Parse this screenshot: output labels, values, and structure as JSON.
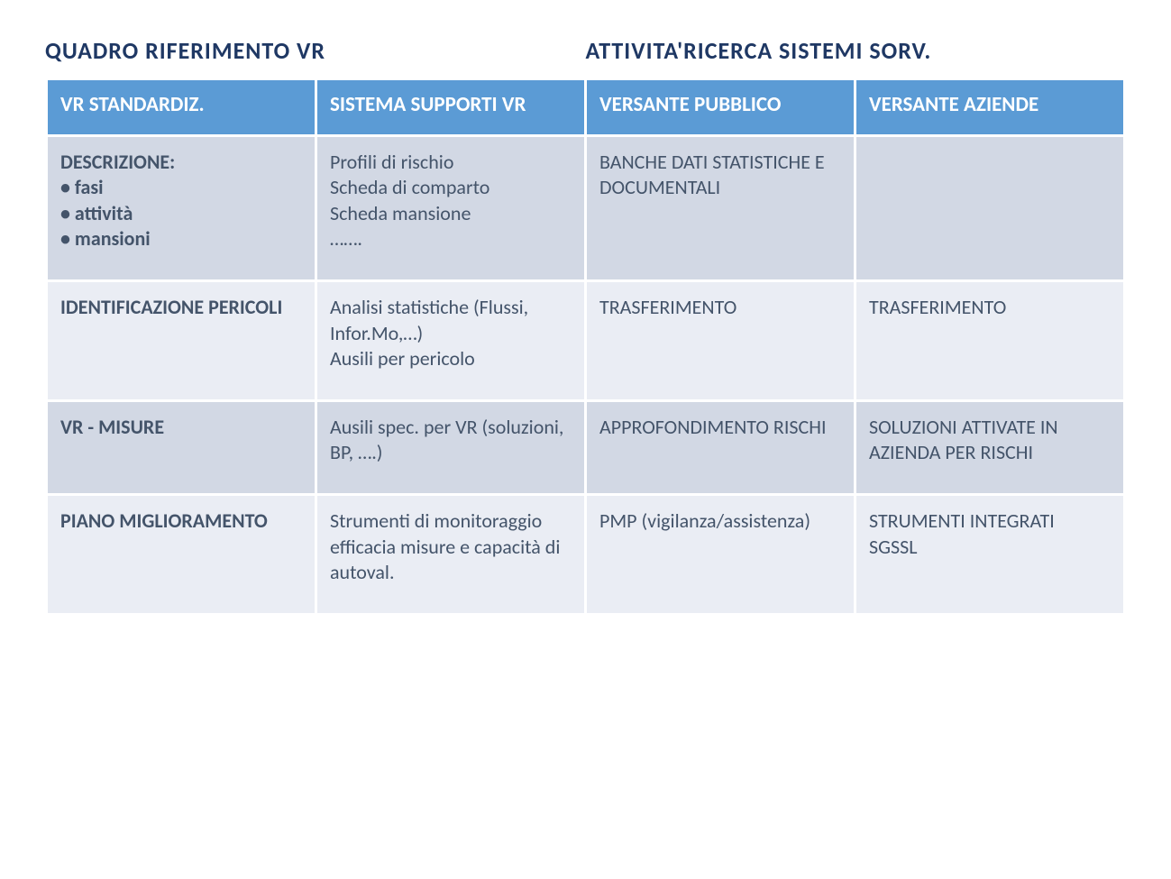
{
  "titles": {
    "left": "QUADRO RIFERIMENTO  VR",
    "right": "ATTIVITA'RICERCA   SISTEMI  SORV."
  },
  "table": {
    "header_bg": "#5b9bd5",
    "header_fg": "#ffffff",
    "row_alt_bg": "#d2d8e4",
    "row_reg_bg": "#eaedf4",
    "text_color": "#44546a",
    "title_color": "#1f3864",
    "columns": [
      "VR STANDARDIZ.",
      "SISTEMA SUPPORTI VR",
      "VERSANTE PUBBLICO",
      "VERSANTE AZIENDE"
    ],
    "rows": [
      {
        "cells": [
          "DESCRIZIONE:\n• fasi\n• attività\n• mansioni",
          "Profili di rischio\nScheda di comparto\nScheda mansione\n…….",
          "BANCHE DATI STATISTICHE E DOCUMENTALI",
          ""
        ]
      },
      {
        "cells": [
          "IDENTIFICAZIONE PERICOLI",
          "Analisi statistiche (Flussi, Infor.Mo,…)\nAusili per pericolo",
          "TRASFERIMENTO",
          "TRASFERIMENTO"
        ]
      },
      {
        "cells": [
          "VR -  MISURE",
          "Ausili spec. per VR (soluzioni, BP, ….)",
          "APPROFONDIMENTO RISCHI",
          "SOLUZIONI ATTIVATE IN AZIENDA PER RISCHI"
        ]
      },
      {
        "cells": [
          "PIANO MIGLIORAMENTO",
          "Strumenti di monitoraggio efficacia misure e capacità di autoval.",
          "PMP (vigilanza/assistenza)",
          "STRUMENTI INTEGRATI\nSGSSL"
        ]
      }
    ]
  }
}
